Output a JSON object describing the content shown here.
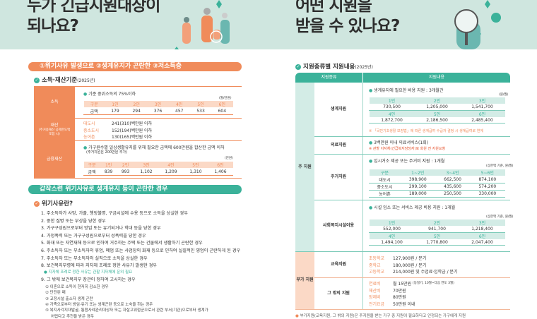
{
  "header": {
    "left_title_1": "누가 긴급지원대상이",
    "left_title_2": "되나요?",
    "right_title_1": "어떤 지원을",
    "right_title_2": "받을 수 있나요?"
  },
  "colors": {
    "orange": "#f08b5a",
    "teal": "#3bb29a",
    "mint_bg": "#cfe6df"
  },
  "left": {
    "criteria_banner": "①위기사유 발생으로 ②생계유지가 곤란한 ③저소득층",
    "standard_title": "소득·재산기준",
    "standard_year": "(2025년)",
    "income": {
      "label": "소득",
      "desc": "기준 중위소득의 75%이하",
      "unit": "(월/만원)",
      "headers": [
        "구분",
        "1인",
        "2인",
        "3인",
        "4인",
        "5인",
        "6인"
      ],
      "row": [
        "금액",
        "179",
        "294",
        "376",
        "457",
        "533",
        "604"
      ]
    },
    "property": {
      "label": "재산",
      "label_note": "(주거용재산 공제한도액 포함 시)",
      "rows": [
        [
          "대도시",
          "241(310)백만원 이하"
        ],
        [
          "중소도시",
          "152(194)백만원 이하"
        ],
        [
          "농어촌",
          "130(165)백만원 이하"
        ]
      ]
    },
    "financial": {
      "label": "금융재산",
      "desc": "가구원수별 일상생활유지를 위해 필요한 금액에 600만원을 합산한 금액 이하",
      "note": "(주거지원은 200만원 추가)",
      "unit": "(만원)",
      "headers": [
        "구분",
        "1인",
        "2인",
        "3인",
        "4인",
        "5인",
        "6인"
      ],
      "row": [
        "금액",
        "839",
        "993",
        "1,102",
        "1,209",
        "1,310",
        "1,406"
      ]
    },
    "crisis_banner": "갑작스런 위기사유로 생계유지 등이 곤란한 경우",
    "crisis_title": "위기사유란?",
    "crisis_items": [
      "1. 주소득자가 사망, 가출, 행방불명, 구금시설에 수용 등으로 소득을 상실한 경우",
      "2. 중한 질병 또는 부상을 당한 경우",
      "3. 가구구성원으로부터 방임 또는 유기되거나 학대 등을 당한 경우",
      "4. 가정폭력 또는 가구구성원으로부터 성폭력을 당한 경우",
      "5. 화재 또는 자연재해 등으로 인하여 거주하는 주택 또는 건물에서 생활하기 곤란한 경우",
      "6. 주소득자 또는 부소득자의 휴업, 폐업 또는 사업장의 화재 등으로 인하여 실질적인 영업이 곤란하게 된 경우",
      "7. 주소득자 또는 부소득자의 실직으로 소득을 상실한 경우",
      "8. 보건복지부령에 따라 지자체 조례로 정한 사유가 발생한 경우"
    ],
    "crisis_note": "지자체 조례로 정한 사유는 관할 지자체에 문의 필요",
    "crisis_item9": "9. 그 밖에 보건복지부 장관이 정하여 고시하는 경우",
    "crisis_sub": [
      "① 이혼으로 소득이 현저히 감소한 경우",
      "② 단전된 때",
      "③ 교정시설 출소자 생계 곤란",
      "④ 가족으로부터 방임·유기 또는 생계곤란 등으로 노숙을 하는 경우",
      "⑤ 복지사각지대발굴, 통합사례관리대상자 또는 자살고위험군으로서 관련 부서(기관)으로부터 생계가",
      "어렵다고 추천을 받은 경우"
    ]
  },
  "right": {
    "title": "지원종류별 지원내용",
    "year": "(2025년)",
    "col_headers": [
      "지원종류",
      "지원내용"
    ],
    "main_label": "주 지원",
    "extra_label": "부가 지원",
    "living": {
      "label": "생계지원",
      "desc": "생계유지에 필요한 비용 지원 : 3개월간",
      "unit": "(원/월)",
      "h1": [
        "1인",
        "2인",
        "3인"
      ],
      "v1": [
        "730,500",
        "1,205,000",
        "1,541,700"
      ],
      "h2": [
        "4인",
        "5인",
        "6인"
      ],
      "v2": [
        "1,872,700",
        "2,186,500",
        "2,485,400"
      ],
      "note": "※ 「국민기초생활 보장법」에 따른 생계급여 수급자 결정 시 생계급여로 연계"
    },
    "medical": {
      "label": "의료지원",
      "desc": "3백만원 이내 의료서비스(1회)",
      "note": "※ 관할 지자체(긴급복지담당자)로 회원 전 지원요청"
    },
    "housing": {
      "label": "주거지원",
      "desc": "임시거소 제공 또는 주거비 지원 : 1개월",
      "unit": "(상한액 기준, 원/월)",
      "headers": [
        "구분",
        "1~2인",
        "3~4인",
        "5~6인"
      ],
      "rows": [
        [
          "대도시",
          "398,900",
          "662,500",
          "874,100"
        ],
        [
          "중소도시",
          "299,100",
          "435,600",
          "574,200"
        ],
        [
          "농어촌",
          "189,000",
          "250,500",
          "330,000"
        ]
      ]
    },
    "welfare": {
      "label": "사회복지시설이용",
      "desc": "시설 입소 또는 서비스 제공 비용 지원 : 1개월",
      "unit": "(상한액 기준, 원/월)",
      "h1": [
        "1인",
        "2인",
        "3인"
      ],
      "v1": [
        "552,000",
        "941,700",
        "1,218,400"
      ],
      "h2": [
        "4인",
        "5인",
        "6인"
      ],
      "v2": [
        "1,494,100",
        "1,770,800",
        "2,047,400"
      ]
    },
    "education": {
      "label": "교육지원",
      "rows": [
        [
          "초등학교",
          "127,900원 / 분기"
        ],
        [
          "중학교",
          "180,000원 / 분기"
        ],
        [
          "고등학교",
          "214,000원 및 수업료·입학금 / 분기"
        ]
      ]
    },
    "other": {
      "label": "그 밖의 지원",
      "rows": [
        [
          "연료비",
          "월 15만원",
          "(동절기, 10월~다음 연도 3월)"
        ],
        [
          "해산비",
          "70만원",
          ""
        ],
        [
          "장제비",
          "80만원",
          ""
        ],
        [
          "전기요금",
          "50만원 이내",
          ""
        ]
      ]
    },
    "footnote": "부가지원(교육지원, 그 밖의 지원)은 주지원을 받는 가구 중 지원이 필요하다고 인정되는 가구에게 지원"
  }
}
